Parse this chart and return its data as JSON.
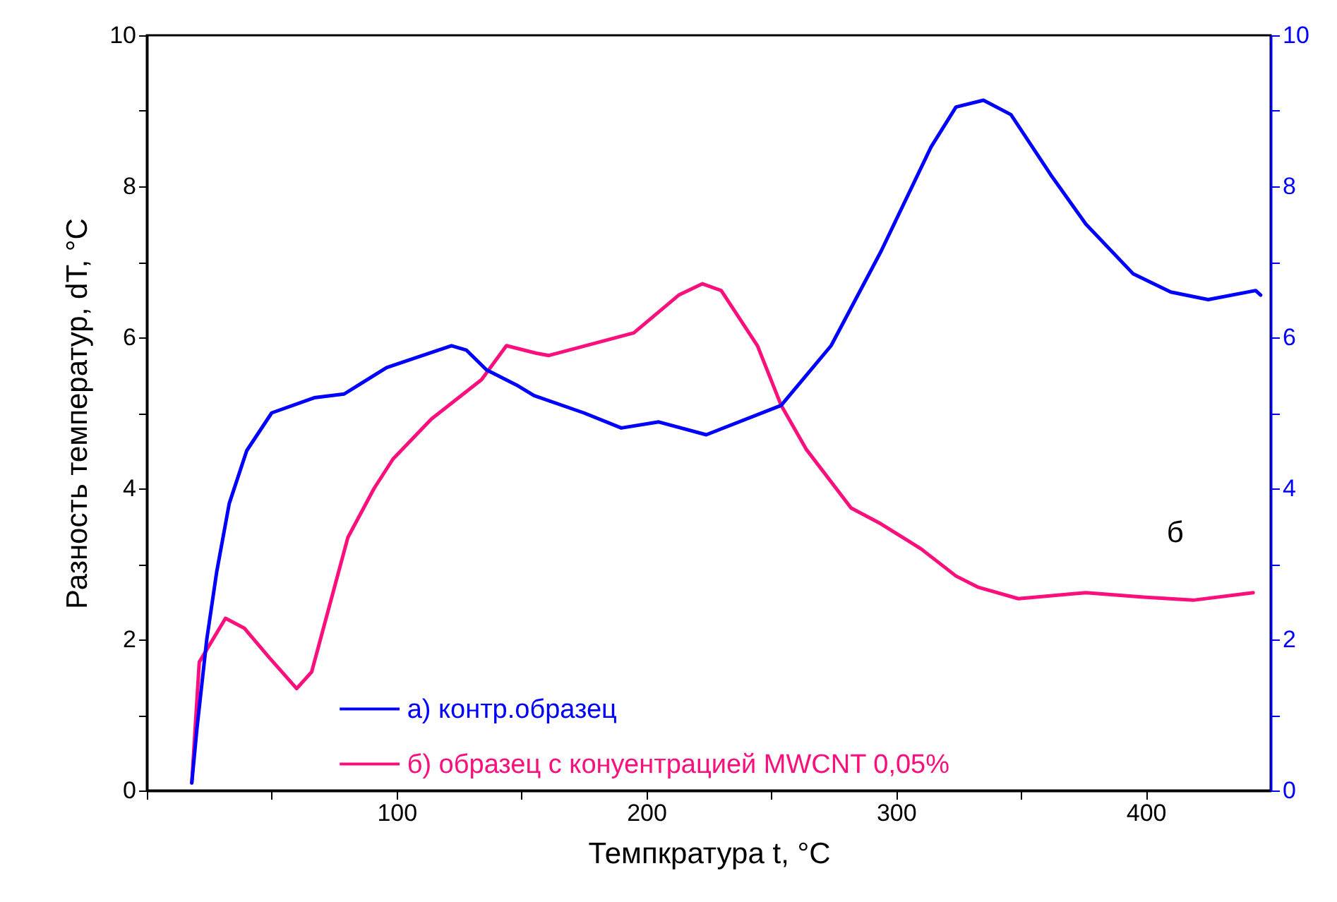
{
  "chart_data": {
    "type": "line",
    "xlabel": "Темпкратура t, °C",
    "ylabel": "Разность температур, dT, °C",
    "xlim": [
      0,
      450
    ],
    "xticks": [
      {
        "value": 0,
        "label": null
      },
      {
        "value": 50,
        "label": null
      },
      100,
      {
        "value": 150,
        "label": null
      },
      200,
      {
        "value": 250,
        "label": null
      },
      300,
      {
        "value": 350,
        "label": null
      },
      400
    ],
    "ylim": [
      0,
      10
    ],
    "yticks": [
      0,
      {
        "value": 1,
        "label": null
      },
      2,
      {
        "value": 3,
        "label": null
      },
      4,
      {
        "value": 5,
        "label": null
      },
      6,
      {
        "value": 7,
        "label": null
      },
      8,
      {
        "value": 9,
        "label": null
      },
      10
    ],
    "y2lim": [
      0,
      10
    ],
    "y2ticks": [
      0,
      {
        "value": 1,
        "label": null
      },
      2,
      {
        "value": 3,
        "label": null
      },
      4,
      {
        "value": 5,
        "label": null
      },
      6,
      {
        "value": 7,
        "label": null
      },
      8,
      {
        "value": 9,
        "label": null
      },
      10
    ],
    "legend": "bottom left",
    "grid": false,
    "line_style": "solid",
    "annotations": [
      "б"
    ],
    "series": [
      {
        "name": "а) контр.образец",
        "color": "#0000ff",
        "axis": "y2",
        "x": [
          18,
          20,
          24,
          28,
          33,
          40,
          50,
          67,
          79,
          96,
          122,
          128,
          136,
          148,
          155,
          175,
          190,
          205,
          224,
          254,
          274,
          294,
          314,
          324,
          335,
          346,
          362,
          376,
          395,
          410,
          425,
          444,
          446
        ],
        "values": [
          0.1,
          0.8,
          2.0,
          2.9,
          3.8,
          4.5,
          5.0,
          5.2,
          5.25,
          5.6,
          5.89,
          5.83,
          5.57,
          5.37,
          5.23,
          5.0,
          4.8,
          4.88,
          4.71,
          5.1,
          5.89,
          7.14,
          8.52,
          9.05,
          9.14,
          8.95,
          8.15,
          7.5,
          6.84,
          6.6,
          6.5,
          6.62,
          6.56
        ]
      },
      {
        "name": "б) образец с конуентрацией MWCNT 0,05%",
        "color": "#fa0f7d",
        "x": [
          18,
          21,
          31.5,
          39,
          49,
          60,
          66,
          73,
          80.5,
          91,
          98.6,
          114,
          134,
          144,
          156,
          161,
          195,
          213,
          222.5,
          230,
          244.5,
          254,
          264,
          282,
          294,
          310,
          324,
          333,
          349,
          376,
          399,
          419,
          443
        ],
        "values": [
          0.1,
          1.7,
          2.28,
          2.15,
          1.76,
          1.35,
          1.57,
          2.43,
          3.35,
          4.0,
          4.39,
          4.92,
          5.44,
          5.89,
          5.79,
          5.76,
          6.06,
          6.56,
          6.71,
          6.62,
          5.89,
          5.1,
          4.52,
          3.74,
          3.53,
          3.2,
          2.84,
          2.69,
          2.54,
          2.62,
          2.56,
          2.52,
          2.62
        ]
      }
    ]
  }
}
